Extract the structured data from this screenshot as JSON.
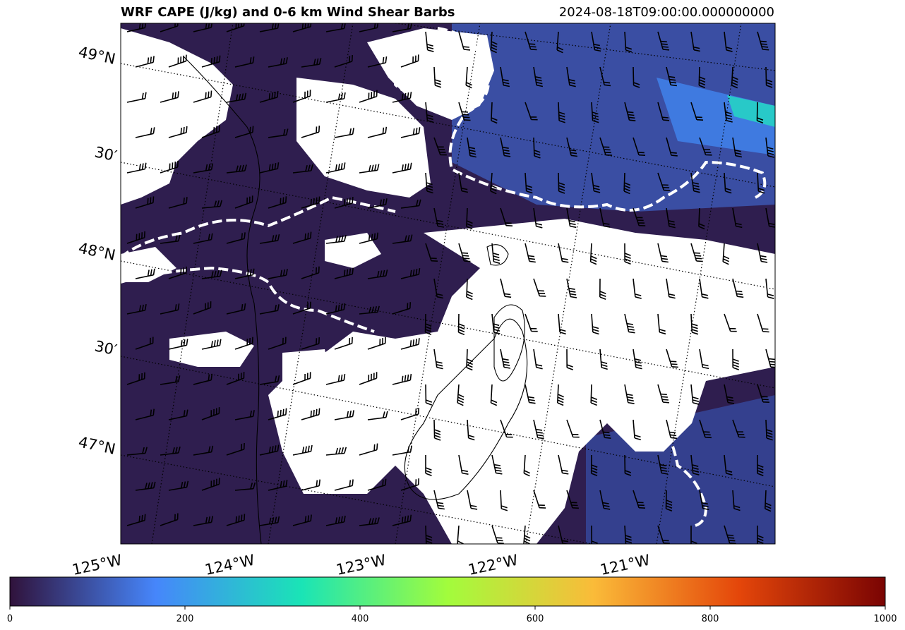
{
  "title": "WRF CAPE (J/kg) and 0-6 km Wind Shear Barbs",
  "timestamp": "2024-08-18T09:00:00.000000000",
  "chart_data": {
    "type": "heatmap",
    "field": "CAPE (J/kg)",
    "overlay": "0-6 km wind shear barbs",
    "lat_ticks": [
      "49°N",
      "30′",
      "48°N",
      "30′",
      "47°N"
    ],
    "lon_ticks": [
      "125°W",
      "124°W",
      "123°W",
      "122°W",
      "121°W"
    ],
    "lat_range": [
      46.8,
      49.2
    ],
    "lon_range": [
      -125.0,
      -120.0
    ],
    "colorbar": {
      "colormap": "turbo",
      "vmin": 0,
      "vmax": 1000,
      "ticks": [
        0,
        200,
        400,
        600,
        800,
        1000
      ],
      "colors": [
        "#30123b",
        "#4686fb",
        "#1ae4b6",
        "#a2fc3c",
        "#fabb39",
        "#e4460a",
        "#7a0403"
      ]
    },
    "grid": true,
    "masked_color": "#ffffff"
  }
}
